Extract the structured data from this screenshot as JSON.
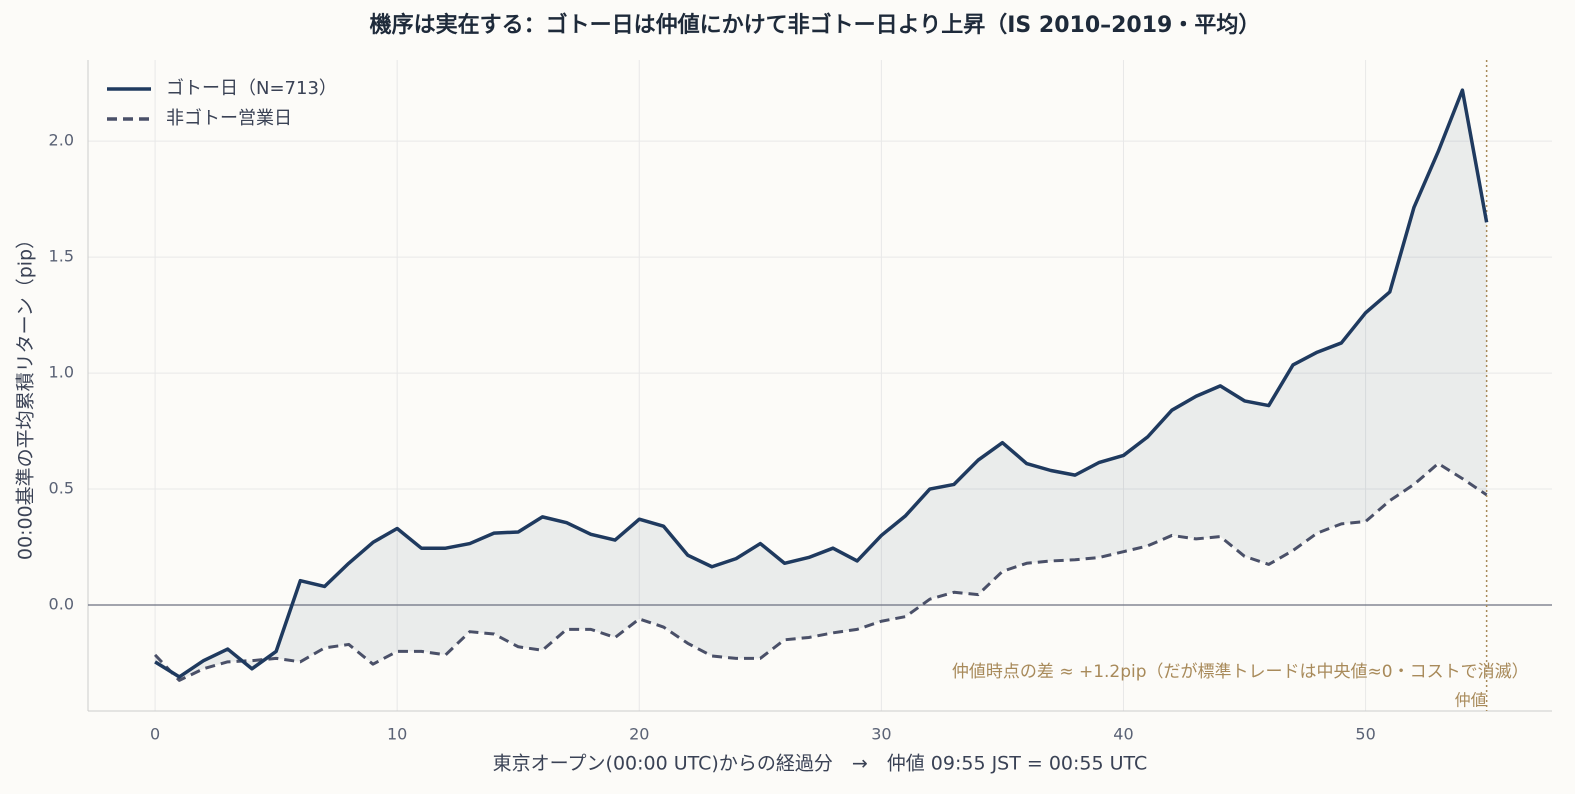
{
  "chart_data": {
    "type": "line",
    "title": "機序は実在する：ゴトー日は仲値にかけて非ゴトー日より上昇（IS 2010–2019・平均）",
    "xlabel": "東京オープン(00:00 UTC)からの経過分　→　仲値 09:55 JST = 00:55 UTC",
    "ylabel": "00:00基準の平均累積リターン（pip）",
    "x": [
      0,
      1,
      2,
      3,
      4,
      5,
      6,
      7,
      8,
      9,
      10,
      11,
      12,
      13,
      14,
      15,
      16,
      17,
      18,
      19,
      20,
      21,
      22,
      23,
      24,
      25,
      26,
      27,
      28,
      29,
      30,
      31,
      32,
      33,
      34,
      35,
      36,
      37,
      38,
      39,
      40,
      41,
      42,
      43,
      44,
      45,
      46,
      47,
      48,
      49,
      50,
      51,
      52,
      53,
      54,
      55
    ],
    "series": [
      {
        "name": "ゴトー日（N=713）",
        "color": "#1f3a5f",
        "linestyle": "solid",
        "values": [
          -0.245,
          -0.31,
          -0.24,
          -0.19,
          -0.275,
          -0.2,
          0.105,
          0.08,
          0.18,
          0.27,
          0.33,
          0.245,
          0.245,
          0.265,
          0.31,
          0.315,
          0.38,
          0.355,
          0.305,
          0.28,
          0.37,
          0.34,
          0.215,
          0.165,
          0.2,
          0.265,
          0.18,
          0.205,
          0.245,
          0.19,
          0.3,
          0.385,
          0.5,
          0.52,
          0.625,
          0.7,
          0.61,
          0.58,
          0.56,
          0.615,
          0.645,
          0.725,
          0.84,
          0.9,
          0.945,
          0.88,
          0.86,
          1.035,
          1.09,
          1.13,
          1.26,
          1.35,
          1.715,
          1.955,
          2.22,
          1.65
        ]
      },
      {
        "name": "非ゴトー営業日",
        "color": "#4a5068",
        "linestyle": "dashed",
        "values": [
          -0.215,
          -0.325,
          -0.275,
          -0.245,
          -0.24,
          -0.23,
          -0.245,
          -0.185,
          -0.17,
          -0.255,
          -0.2,
          -0.2,
          -0.215,
          -0.115,
          -0.125,
          -0.18,
          -0.195,
          -0.105,
          -0.105,
          -0.14,
          -0.06,
          -0.095,
          -0.165,
          -0.22,
          -0.23,
          -0.23,
          -0.15,
          -0.14,
          -0.12,
          -0.105,
          -0.07,
          -0.05,
          0.025,
          0.055,
          0.045,
          0.145,
          0.18,
          0.19,
          0.195,
          0.205,
          0.23,
          0.255,
          0.3,
          0.285,
          0.295,
          0.21,
          0.175,
          0.235,
          0.31,
          0.35,
          0.36,
          0.45,
          0.52,
          0.61,
          0.545,
          0.475
        ]
      }
    ],
    "fill_between": true,
    "xlim": [
      -2.77,
      57.7
    ],
    "xticks": [
      0,
      10,
      20,
      30,
      40,
      50
    ],
    "ylim": [
      -0.457,
      2.35
    ],
    "yticks": [
      {
        "value": 0,
        "label": "0.0"
      },
      0.5,
      {
        "value": 1,
        "label": "1.0"
      },
      1.5,
      {
        "value": 2,
        "label": "2.0"
      }
    ],
    "grid": true,
    "legend": "upper left",
    "hline": 0,
    "vline": {
      "x": 55,
      "label": "仲値",
      "color": "#a88a5a"
    },
    "annotation": {
      "text": "仲値時点の差 ≈ +1.2pip（だが標準トレードは中央値≈0・コストで消滅）",
      "color": "#a88a5a"
    }
  }
}
